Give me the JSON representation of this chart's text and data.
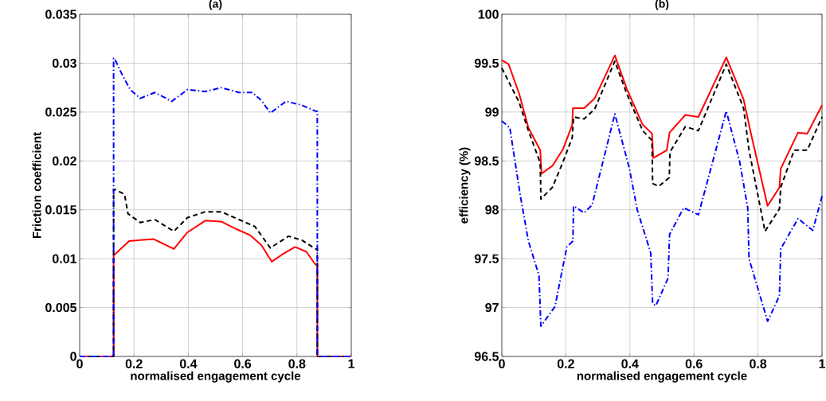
{
  "chart_data": [
    {
      "type": "line",
      "title": "(a)",
      "xlabel": "normalised engagement cycle",
      "ylabel": "Friction coefficient",
      "xlim": [
        0,
        1
      ],
      "ylim": [
        0,
        0.035
      ],
      "xticks": [
        0,
        0.2,
        0.4,
        0.6,
        0.8,
        1
      ],
      "yticks": [
        0,
        0.005,
        0.01,
        0.015,
        0.02,
        0.025,
        0.03,
        0.035
      ],
      "grid": true,
      "marker": "none",
      "series": [
        {
          "color": "#ff0000",
          "line_style": "solid",
          "x": [
            0,
            0.125,
            0.125,
            0.128,
            0.182,
            0.223,
            0.273,
            0.347,
            0.397,
            0.463,
            0.521,
            0.579,
            0.628,
            0.669,
            0.707,
            0.744,
            0.793,
            0.835,
            0.868,
            0.875,
            0.875,
            1
          ],
          "values": [
            0,
            0,
            0.0104,
            0.0104,
            0.0118,
            0.0119,
            0.012,
            0.011,
            0.0127,
            0.0139,
            0.0138,
            0.013,
            0.0124,
            0.0114,
            0.0097,
            0.0104,
            0.0112,
            0.0107,
            0.0094,
            0.0094,
            0,
            0
          ]
        },
        {
          "color": "#000000",
          "line_style": "dashed",
          "x": [
            0,
            0.125,
            0.125,
            0.128,
            0.165,
            0.178,
            0.223,
            0.277,
            0.347,
            0.397,
            0.463,
            0.521,
            0.595,
            0.645,
            0.702,
            0.769,
            0.818,
            0.868,
            0.875,
            0.875,
            1
          ],
          "values": [
            0,
            0,
            0.0171,
            0.0171,
            0.0166,
            0.0146,
            0.0137,
            0.014,
            0.0128,
            0.0142,
            0.0148,
            0.0148,
            0.0139,
            0.0133,
            0.0111,
            0.0123,
            0.0119,
            0.011,
            0.011,
            0,
            0
          ]
        },
        {
          "color": "#0000ff",
          "line_style": "dashdot",
          "x": [
            0,
            0.125,
            0.125,
            0.128,
            0.157,
            0.186,
            0.223,
            0.277,
            0.339,
            0.397,
            0.463,
            0.521,
            0.587,
            0.636,
            0.669,
            0.702,
            0.76,
            0.818,
            0.868,
            0.875,
            0.875,
            1
          ],
          "values": [
            0,
            0,
            0.0305,
            0.0305,
            0.0288,
            0.0273,
            0.0264,
            0.027,
            0.0261,
            0.0273,
            0.0271,
            0.0275,
            0.027,
            0.027,
            0.0262,
            0.0249,
            0.0261,
            0.0257,
            0.0251,
            0.0251,
            0,
            0
          ]
        }
      ]
    },
    {
      "type": "line",
      "title": "(b)",
      "xlabel": "normalised engagement cycle",
      "ylabel": "efficiency (%)",
      "xlim": [
        0,
        1
      ],
      "ylim": [
        96.5,
        100
      ],
      "xticks": [
        0,
        0.2,
        0.4,
        0.6,
        0.8,
        1
      ],
      "yticks": [
        96.5,
        97,
        97.5,
        98,
        98.5,
        99,
        99.5,
        100
      ],
      "grid": true,
      "marker": "none",
      "series": [
        {
          "color": "#ff0000",
          "line_style": "solid",
          "x": [
            0,
            0.021,
            0.054,
            0.083,
            0.12,
            0.124,
            0.158,
            0.191,
            0.22,
            0.222,
            0.257,
            0.29,
            0.353,
            0.39,
            0.44,
            0.469,
            0.473,
            0.515,
            0.524,
            0.573,
            0.614,
            0.701,
            0.755,
            0.776,
            0.83,
            0.867,
            0.871,
            0.925,
            0.954,
            1
          ],
          "values": [
            99.53,
            99.49,
            99.19,
            98.84,
            98.61,
            98.37,
            98.45,
            98.62,
            98.87,
            99.04,
            99.04,
            99.14,
            99.58,
            99.24,
            98.87,
            98.78,
            98.53,
            98.61,
            98.79,
            98.97,
            98.95,
            99.56,
            99.13,
            98.81,
            98.04,
            98.23,
            98.42,
            98.79,
            98.78,
            99.07
          ]
        },
        {
          "color": "#000000",
          "line_style": "dashed",
          "x": [
            0,
            0.054,
            0.083,
            0.12,
            0.122,
            0.158,
            0.191,
            0.22,
            0.224,
            0.257,
            0.29,
            0.353,
            0.39,
            0.44,
            0.469,
            0.471,
            0.49,
            0.523,
            0.525,
            0.573,
            0.614,
            0.701,
            0.755,
            0.772,
            0.822,
            0.867,
            0.871,
            0.913,
            0.954,
            1
          ],
          "values": [
            99.45,
            99.1,
            98.81,
            98.48,
            98.11,
            98.23,
            98.49,
            98.74,
            98.95,
            98.93,
            99.03,
            99.52,
            99.19,
            98.81,
            98.71,
            98.27,
            98.24,
            98.33,
            98.59,
            98.85,
            98.81,
            99.49,
            99.04,
            98.61,
            97.78,
            98.01,
            98.23,
            98.61,
            98.61,
            98.95
          ]
        },
        {
          "color": "#0000ff",
          "line_style": "dashdot",
          "x": [
            0,
            0.025,
            0.058,
            0.083,
            0.116,
            0.122,
            0.166,
            0.203,
            0.222,
            0.224,
            0.257,
            0.282,
            0.353,
            0.398,
            0.423,
            0.465,
            0.471,
            0.481,
            0.519,
            0.524,
            0.568,
            0.614,
            0.701,
            0.743,
            0.768,
            0.772,
            0.83,
            0.867,
            0.871,
            0.925,
            0.971,
            1
          ],
          "values": [
            98.91,
            98.84,
            98.14,
            97.68,
            97.33,
            96.81,
            97.01,
            97.62,
            97.68,
            98.04,
            97.97,
            98.05,
            98.98,
            98.43,
            98.0,
            97.56,
            97.04,
            97.02,
            97.3,
            97.75,
            98.02,
            97.95,
            99.01,
            98.49,
            98.02,
            97.5,
            96.86,
            97.12,
            97.6,
            97.91,
            97.79,
            98.14
          ]
        }
      ]
    }
  ]
}
